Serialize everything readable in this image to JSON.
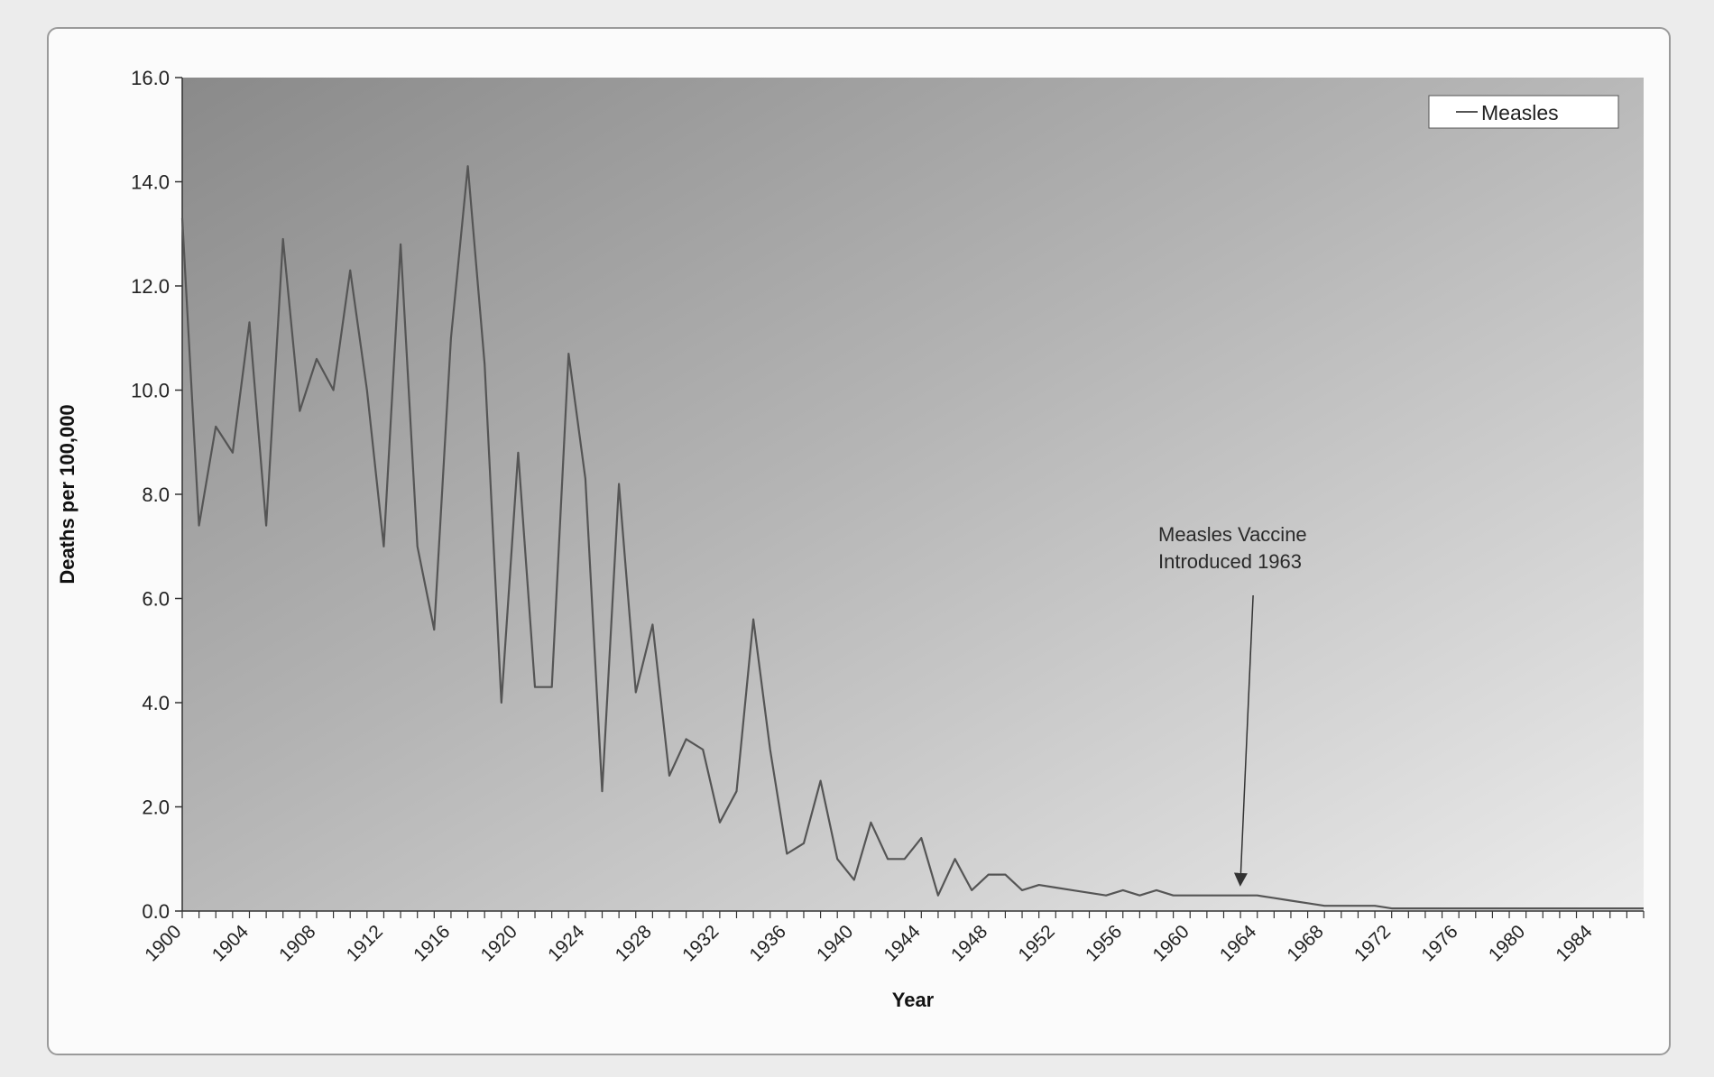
{
  "chart_data": {
    "type": "line",
    "title": "",
    "xlabel": "Year",
    "ylabel": "Deaths per 100,000",
    "ylim": [
      0,
      16
    ],
    "y_ticks": [
      "0.0",
      "2.0",
      "4.0",
      "6.0",
      "8.0",
      "10.0",
      "12.0",
      "14.0",
      "16.0"
    ],
    "x_tick_labels": [
      "1900",
      "1904",
      "1908",
      "1912",
      "1916",
      "1920",
      "1924",
      "1928",
      "1932",
      "1936",
      "1940",
      "1944",
      "1948",
      "1952",
      "1956",
      "1960",
      "1964",
      "1968",
      "1972",
      "1976",
      "1980",
      "1984"
    ],
    "legend": {
      "position": "top-right",
      "label": "Measles"
    },
    "grid": false,
    "annotation": {
      "lines": [
        "Measles Vaccine",
        "Introduced 1963"
      ],
      "points_to_year": 1963
    },
    "colors": {
      "plot_background_dark": "#8a8a8a",
      "plot_background_light": "#e6e6e6",
      "line": "#555555"
    },
    "series": [
      {
        "name": "Measles",
        "x": [
          1900,
          1901,
          1902,
          1903,
          1904,
          1905,
          1906,
          1907,
          1908,
          1909,
          1910,
          1911,
          1912,
          1913,
          1914,
          1915,
          1916,
          1917,
          1918,
          1919,
          1920,
          1921,
          1922,
          1923,
          1924,
          1925,
          1926,
          1927,
          1928,
          1929,
          1930,
          1931,
          1932,
          1933,
          1934,
          1935,
          1936,
          1937,
          1938,
          1939,
          1940,
          1941,
          1942,
          1943,
          1944,
          1945,
          1946,
          1947,
          1948,
          1949,
          1950,
          1951,
          1952,
          1953,
          1954,
          1955,
          1956,
          1957,
          1958,
          1959,
          1960,
          1961,
          1962,
          1963,
          1964,
          1965,
          1966,
          1967,
          1968,
          1969,
          1970,
          1971,
          1972,
          1973,
          1974,
          1975,
          1976,
          1977,
          1978,
          1979,
          1980,
          1981,
          1982,
          1983,
          1984,
          1985,
          1986,
          1987
        ],
        "values": [
          13.3,
          7.4,
          9.3,
          8.8,
          11.3,
          7.4,
          12.9,
          9.6,
          10.6,
          10.0,
          12.3,
          10.0,
          7.0,
          12.8,
          7.0,
          5.4,
          11.0,
          14.3,
          10.5,
          4.0,
          8.8,
          4.3,
          4.3,
          10.7,
          8.3,
          2.3,
          8.2,
          4.2,
          5.5,
          2.6,
          3.3,
          3.1,
          1.7,
          2.3,
          5.6,
          3.1,
          1.1,
          1.3,
          2.5,
          1.0,
          0.6,
          1.7,
          1.0,
          1.0,
          1.4,
          0.3,
          1.0,
          0.4,
          0.7,
          0.7,
          0.4,
          0.5,
          0.45,
          0.4,
          0.35,
          0.3,
          0.4,
          0.3,
          0.4,
          0.3,
          0.3,
          0.3,
          0.3,
          0.3,
          0.3,
          0.25,
          0.2,
          0.15,
          0.1,
          0.1,
          0.1,
          0.1,
          0.05,
          0.05,
          0.05,
          0.05,
          0.05,
          0.05,
          0.05,
          0.05,
          0.05,
          0.05,
          0.05,
          0.05,
          0.05,
          0.05,
          0.05,
          0.05
        ]
      }
    ]
  }
}
